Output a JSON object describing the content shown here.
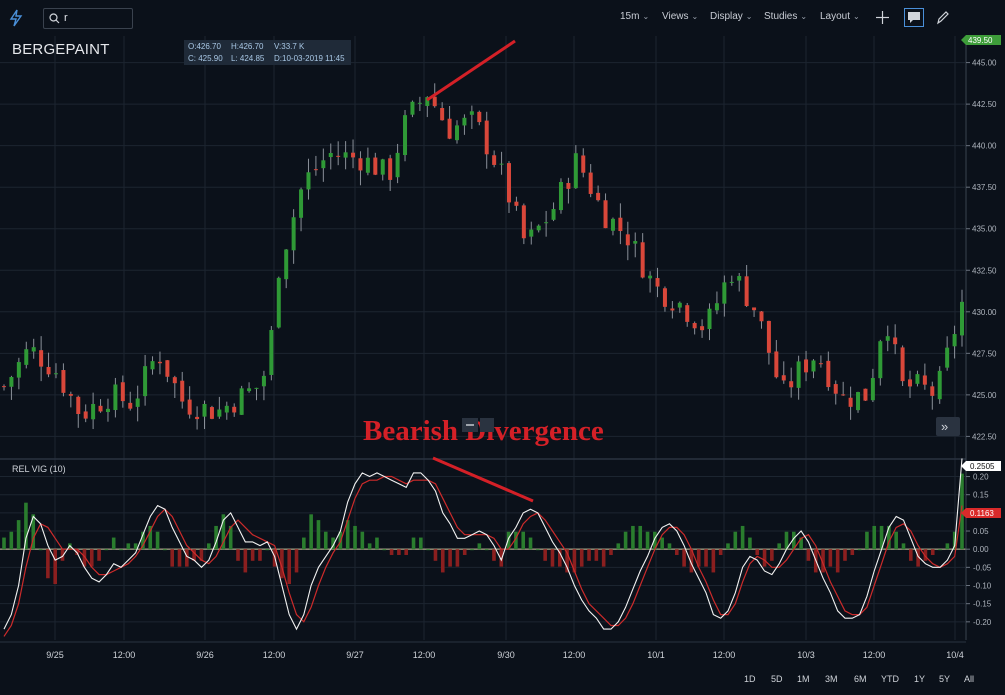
{
  "toolbar": {
    "search_value": "r",
    "interval": "15m",
    "views": "Views",
    "display": "Display",
    "studies": "Studies",
    "layout": "Layout"
  },
  "symbol": "BERGEPAINT",
  "ohlc": {
    "open": "O:426.70",
    "high": "H:426.70",
    "volume": "V:33.7 K",
    "close": "C: 425.90",
    "low": "L: 424.85",
    "date": "D:10-03-2019 11:45"
  },
  "annotation": "Bearish Divergence",
  "colors": {
    "background": "#0b111a",
    "up": "#2f9a36",
    "down": "#d9473a",
    "grid": "#1c2530",
    "rvi_line": "#f2f2f2",
    "signal_line": "#cc2b2b",
    "annotation": "#d42027",
    "last_price_badge": "#3e9d3a"
  },
  "chart_data": {
    "type": "line",
    "price_axis": {
      "ticks": [
        "445.00",
        "442.50",
        "440.00",
        "437.50",
        "435.00",
        "432.50",
        "430.00",
        "427.50",
        "425.00",
        "422.50"
      ],
      "range": [
        421.2,
        446.6
      ],
      "last_price_label": "439.50"
    },
    "indicator": {
      "name": "REL VIG (10)",
      "ticks": [
        "0.20",
        "0.15",
        "0.10",
        "0.05",
        "0.00",
        "-0.05",
        "-0.10",
        "-0.15",
        "-0.20"
      ],
      "range": [
        -0.25,
        0.24
      ],
      "last_value_label": "0.2505",
      "signal_value_label": "0.1163",
      "rvi": [
        -0.22,
        -0.18,
        -0.1,
        0.03,
        0.09,
        0.07,
        0.01,
        -0.03,
        -0.02,
        0.01,
        -0.01,
        -0.05,
        -0.08,
        -0.09,
        -0.07,
        -0.04,
        -0.05,
        -0.03,
        -0.01,
        0.04,
        0.09,
        0.12,
        0.11,
        0.06,
        0.02,
        -0.02,
        -0.03,
        -0.05,
        -0.03,
        0.02,
        0.08,
        0.1,
        0.06,
        0.02,
        0.02,
        0.01,
        0.02,
        -0.02,
        -0.1,
        -0.18,
        -0.22,
        -0.18,
        -0.1,
        -0.05,
        -0.02,
        0.01,
        0.05,
        0.13,
        0.18,
        0.21,
        0.2,
        0.21,
        0.2,
        0.19,
        0.18,
        0.17,
        0.21,
        0.21,
        0.19,
        0.16,
        0.1,
        0.07,
        0.03,
        0.03,
        0.04,
        0.05,
        0.04,
        0.01,
        -0.03,
        0.03,
        0.06,
        0.1,
        0.11,
        0.1,
        0.06,
        0.02,
        -0.01,
        -0.05,
        -0.1,
        -0.14,
        -0.17,
        -0.19,
        -0.22,
        -0.22,
        -0.2,
        -0.16,
        -0.11,
        -0.06,
        -0.02,
        0.03,
        0.06,
        0.07,
        0.05,
        0.01,
        -0.04,
        -0.08,
        -0.12,
        -0.18,
        -0.19,
        -0.17,
        -0.12,
        -0.05,
        -0.02,
        -0.03,
        -0.06,
        -0.07,
        -0.04,
        0.0,
        0.03,
        0.05,
        0.02,
        -0.03,
        -0.08,
        -0.12,
        -0.17,
        -0.19,
        -0.19,
        -0.18,
        -0.13,
        -0.06,
        0.0,
        0.06,
        0.09,
        0.08,
        0.03,
        -0.02,
        -0.04,
        -0.05,
        -0.05,
        -0.03,
        0.01,
        0.25
      ],
      "signal": [
        -0.24,
        -0.21,
        -0.15,
        -0.05,
        0.03,
        0.07,
        0.06,
        0.03,
        0.0,
        0.0,
        0.0,
        -0.02,
        -0.05,
        -0.07,
        -0.07,
        -0.06,
        -0.05,
        -0.04,
        -0.02,
        0.01,
        0.05,
        0.09,
        0.11,
        0.09,
        0.05,
        0.01,
        -0.01,
        -0.03,
        -0.04,
        -0.02,
        0.02,
        0.06,
        0.08,
        0.06,
        0.04,
        0.03,
        0.02,
        0.01,
        -0.05,
        -0.12,
        -0.18,
        -0.2,
        -0.16,
        -0.1,
        -0.05,
        -0.01,
        0.02,
        0.08,
        0.14,
        0.18,
        0.19,
        0.19,
        0.2,
        0.2,
        0.19,
        0.18,
        0.19,
        0.19,
        0.19,
        0.18,
        0.14,
        0.1,
        0.06,
        0.04,
        0.04,
        0.04,
        0.04,
        0.03,
        0.0,
        0.0,
        0.03,
        0.07,
        0.09,
        0.1,
        0.08,
        0.05,
        0.02,
        -0.01,
        -0.06,
        -0.11,
        -0.15,
        -0.17,
        -0.19,
        -0.21,
        -0.21,
        -0.19,
        -0.15,
        -0.1,
        -0.05,
        0.0,
        0.04,
        0.06,
        0.06,
        0.04,
        0.0,
        -0.05,
        -0.09,
        -0.14,
        -0.18,
        -0.18,
        -0.15,
        -0.09,
        -0.04,
        -0.02,
        -0.03,
        -0.05,
        -0.05,
        -0.03,
        0.0,
        0.03,
        0.04,
        0.01,
        -0.04,
        -0.09,
        -0.13,
        -0.17,
        -0.18,
        -0.18,
        -0.16,
        -0.1,
        -0.04,
        0.02,
        0.06,
        0.07,
        0.05,
        0.01,
        -0.02,
        -0.04,
        -0.05,
        -0.04,
        -0.02,
        0.12
      ]
    },
    "time_axis": [
      "9/25",
      "12:00",
      "9/26",
      "12:00",
      "9/27",
      "12:00",
      "9/30",
      "12:00",
      "10/1",
      "12:00",
      "10/3",
      "12:00",
      "10/4"
    ],
    "range_buttons": [
      "1D",
      "5D",
      "1M",
      "3M",
      "6M",
      "YTD",
      "1Y",
      "5Y",
      "All"
    ]
  }
}
